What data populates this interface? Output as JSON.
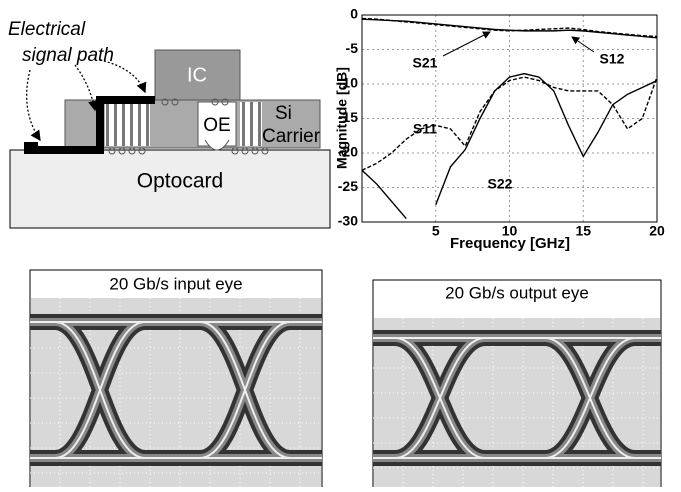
{
  "diagram": {
    "annotation_lines": [
      "Electrical",
      "signal path"
    ],
    "ic": "IC",
    "oe": "OE",
    "carrier_lines": [
      "Si",
      "Carrier"
    ],
    "optocard": "Optocard"
  },
  "chart_data": {
    "type": "line",
    "xlabel": "Frequency [GHz]",
    "ylabel": "Magnitude [dB]",
    "xlim": [
      0,
      20
    ],
    "ylim": [
      -30,
      0
    ],
    "xticks": [
      5,
      10,
      15,
      20
    ],
    "yticks": [
      -30,
      -25,
      -20,
      -15,
      -10,
      -5,
      0
    ],
    "grid": true,
    "x": [
      0,
      1,
      2,
      3,
      4,
      5,
      6,
      7,
      8,
      9,
      10,
      11,
      12,
      13,
      14,
      15,
      16,
      17,
      18,
      19,
      20
    ],
    "series": [
      {
        "name": "S21",
        "color": "#000000",
        "dash": false,
        "values": [
          -0.6,
          -0.7,
          -0.8,
          -0.9,
          -1.1,
          -1.3,
          -1.5,
          -1.7,
          -1.9,
          -2.1,
          -2.2,
          -2.3,
          -2.3,
          -2.3,
          -2.2,
          -2.3,
          -2.5,
          -2.7,
          -2.9,
          -3.1,
          -3.3
        ]
      },
      {
        "name": "S12",
        "color": "#000000",
        "dash": true,
        "values": [
          -0.5,
          -0.6,
          -0.8,
          -1.0,
          -1.2,
          -1.4,
          -1.6,
          -1.8,
          -2.0,
          -2.2,
          -2.3,
          -2.2,
          -2.1,
          -2.0,
          -1.9,
          -2.1,
          -2.4,
          -2.6,
          -2.8,
          -3.0,
          -3.1
        ]
      },
      {
        "name": "S11",
        "color": "#000000",
        "dash": true,
        "values": [
          -22.5,
          -21.5,
          -20,
          -18,
          -16.5,
          -16,
          -16.5,
          -19,
          -14,
          -11,
          -9.5,
          -9,
          -9.5,
          -10.5,
          -11,
          -11,
          -11,
          -13,
          -16.5,
          -15,
          -9
        ]
      },
      {
        "name": "S22",
        "color": "#000000",
        "dash": false,
        "values": [
          -22.5,
          -24.5,
          -27,
          -29.5,
          null,
          -27.5,
          -22,
          -19.5,
          -15,
          -11,
          -9,
          -8.5,
          -9,
          -11,
          -16,
          -20.5,
          -17,
          -13,
          -11.5,
          -10.5,
          -9.5
        ]
      }
    ]
  },
  "eyes": {
    "input_title": "20 Gb/s input eye",
    "output_title": "20 Gb/s output eye"
  }
}
